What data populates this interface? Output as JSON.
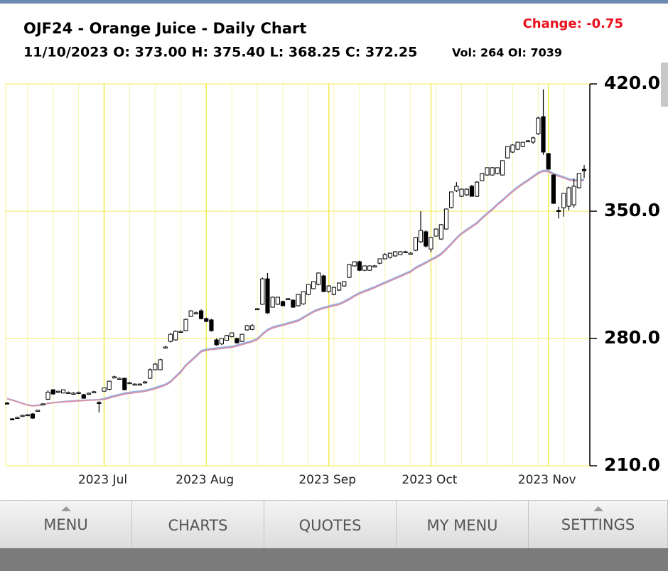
{
  "chart_data": {
    "type": "candlestick",
    "title": "OJF24 - Orange Juice - Daily Chart",
    "subtitle": "11/10/2023 O: 373.00 H: 375.40 L: 368.25 C: 372.25",
    "info": "Vol: 264 OI: 7039",
    "annotation": "Change: -0.75",
    "categories": [
      null,
      null,
      null,
      null,
      null,
      null,
      null,
      null,
      null,
      null,
      null,
      null,
      null,
      null,
      null,
      null,
      null,
      null,
      null,
      "2023 Jul",
      null,
      null,
      null,
      null,
      null,
      null,
      null,
      null,
      null,
      null,
      null,
      null,
      null,
      null,
      null,
      null,
      null,
      null,
      null,
      "2023 Aug",
      null,
      null,
      null,
      null,
      null,
      null,
      null,
      null,
      null,
      null,
      null,
      null,
      null,
      null,
      null,
      null,
      null,
      null,
      null,
      null,
      null,
      null,
      null,
      "2023 Sep",
      null,
      null,
      null,
      null,
      null,
      null,
      null,
      null,
      null,
      null,
      null,
      null,
      null,
      null,
      null,
      null,
      null,
      null,
      null,
      "2023 Oct",
      null,
      null,
      null,
      null,
      null,
      null,
      null,
      null,
      null,
      null,
      null,
      null,
      null,
      null,
      null,
      null,
      null,
      null,
      null,
      null,
      null,
      null,
      "2023 Nov",
      null,
      null,
      null,
      null,
      null,
      null,
      null
    ],
    "open": [
      244.5,
      235.8,
      236.0,
      237.2,
      238.0,
      238.5,
      240.0,
      244.0,
      246.6,
      251.8,
      250.5,
      250.0,
      250.3,
      249.9,
      250.3,
      249.1,
      249.9,
      250.7,
      244.8,
      251.0,
      252.0,
      258.9,
      258.1,
      258.1,
      255.7,
      254.9,
      254.9,
      255.5,
      258.1,
      262.8,
      262.8,
      275.3,
      278.4,
      279.2,
      283.9,
      284.3,
      292.1,
      294.1,
      295.2,
      290.9,
      290.2,
      279.2,
      277.0,
      279.0,
      281.0,
      280.0,
      278.4,
      284.7,
      285.0,
      296.4,
      298.8,
      312.8,
      297.2,
      298.8,
      300.3,
      301.9,
      301.1,
      298.0,
      299.0,
      304.2,
      307.4,
      309.7,
      314.4,
      305.8,
      304.2,
      306.6,
      308.9,
      313.6,
      319.9,
      322.2,
      317.5,
      317.5,
      319.9,
      321.4,
      323.8,
      324.6,
      325.4,
      326.1,
      327.7,
      326.9,
      328.5,
      333.2,
      338.7,
      329.2,
      336.3,
      334.7,
      340.2,
      352.0,
      361.3,
      358.2,
      359.0,
      363.7,
      358.2,
      366.8,
      369.9,
      369.9,
      370.7,
      369.9,
      379.3,
      382.5,
      384.0,
      385.6,
      388.7,
      388.0,
      392.6,
      402.0,
      381.7,
      369.9,
      350.4,
      351.9,
      352.7,
      353.5,
      362.9,
      373.0
    ],
    "high": [
      245.0,
      236.2,
      237.0,
      238.0,
      238.5,
      239.0,
      240.8,
      244.5,
      251.5,
      252.2,
      251.2,
      252.0,
      250.8,
      250.5,
      250.8,
      249.5,
      250.3,
      251.2,
      245.5,
      253.0,
      256.8,
      259.5,
      258.6,
      258.5,
      256.2,
      255.3,
      255.3,
      256.5,
      263.5,
      266.5,
      268.8,
      276.0,
      283.0,
      284.5,
      284.5,
      291.0,
      295.5,
      294.8,
      296.0,
      291.5,
      290.8,
      280.0,
      280.2,
      282.0,
      283.3,
      280.5,
      282.5,
      287.5,
      288.0,
      296.8,
      313.5,
      316.0,
      303.0,
      302.9,
      300.8,
      302.3,
      301.5,
      304.5,
      306.0,
      309.9,
      311.5,
      316.3,
      315.0,
      309.2,
      308.3,
      310.8,
      311.5,
      321.0,
      322.5,
      322.8,
      320.2,
      320.2,
      320.5,
      324.0,
      327.0,
      327.2,
      328.0,
      328.0,
      328.2,
      327.5,
      335.8,
      350.0,
      339.5,
      336.0,
      340.5,
      343.0,
      351.5,
      360.6,
      366.0,
      362.5,
      362.5,
      364.5,
      366.5,
      371.0,
      374.0,
      374.2,
      374.0,
      378.0,
      385.8,
      386.8,
      388.2,
      388.2,
      389.2,
      391.0,
      402.0,
      417.0,
      382.0,
      370.5,
      352.5,
      360.0,
      363.5,
      368.0,
      370.8,
      375.4
    ],
    "low": [
      243.8,
      235.0,
      235.8,
      237.0,
      237.5,
      235.8,
      239.8,
      243.5,
      246.0,
      249.0,
      250.0,
      249.8,
      250.0,
      249.5,
      250.0,
      247.0,
      249.5,
      250.3,
      239.3,
      250.8,
      251.5,
      258.0,
      257.5,
      251.5,
      255.2,
      254.5,
      254.5,
      255.2,
      257.8,
      262.5,
      262.5,
      274.5,
      277.8,
      278.8,
      283.3,
      284.0,
      291.8,
      293.5,
      290.5,
      289.0,
      283.8,
      276.0,
      276.5,
      278.8,
      280.5,
      277.2,
      278.0,
      284.3,
      284.5,
      296.0,
      298.5,
      293.5,
      297.0,
      298.5,
      297.8,
      301.5,
      296.8,
      297.5,
      298.5,
      303.8,
      307.0,
      309.2,
      305.5,
      305.3,
      303.8,
      306.2,
      308.5,
      313.2,
      319.5,
      317.0,
      317.0,
      317.2,
      319.2,
      320.8,
      323.5,
      324.0,
      325.0,
      326.0,
      327.2,
      326.5,
      328.0,
      332.5,
      330.0,
      327.5,
      336.0,
      334.2,
      339.8,
      351.5,
      360.5,
      357.8,
      358.5,
      358.0,
      357.8,
      366.5,
      369.5,
      369.5,
      370.2,
      369.5,
      379.0,
      382.0,
      383.5,
      385.2,
      388.2,
      387.0,
      392.0,
      381.0,
      372.8,
      354.0,
      346.0,
      347.0,
      350.5,
      352.0,
      362.5,
      368.25
    ],
    "close": [
      244.2,
      235.4,
      236.6,
      237.7,
      238.1,
      236.2,
      240.5,
      244.0,
      250.5,
      249.5,
      251.0,
      251.8,
      250.3,
      249.9,
      250.3,
      247.1,
      249.9,
      250.7,
      244.4,
      252.8,
      256.5,
      258.9,
      258.1,
      251.8,
      255.7,
      254.9,
      254.9,
      256.1,
      262.8,
      265.9,
      268.3,
      275.3,
      282.3,
      283.9,
      283.9,
      290.5,
      295.2,
      294.1,
      290.9,
      289.4,
      284.3,
      276.5,
      280.0,
      281.6,
      283.1,
      277.6,
      282.3,
      287.0,
      287.0,
      296.4,
      312.8,
      294.1,
      302.7,
      302.7,
      298.0,
      301.9,
      297.2,
      304.2,
      305.8,
      309.7,
      311.3,
      316.0,
      305.8,
      308.9,
      308.1,
      310.5,
      311.3,
      320.7,
      322.2,
      317.5,
      319.9,
      319.9,
      319.9,
      323.8,
      326.1,
      326.9,
      327.7,
      327.7,
      327.7,
      326.9,
      335.5,
      339.4,
      330.8,
      335.5,
      340.2,
      342.6,
      351.2,
      360.6,
      363.7,
      362.1,
      362.1,
      358.2,
      366.0,
      370.7,
      373.9,
      373.9,
      373.9,
      377.8,
      385.6,
      386.4,
      387.9,
      387.9,
      388.7,
      390.3,
      401.2,
      382.5,
      373.1,
      354.3,
      350.2,
      359.8,
      362.9,
      363.7,
      370.7,
      372.25
    ],
    "series": [
      {
        "color": "#8fb4e6",
        "values": [
          247.0,
          246.2,
          245.3,
          244.4,
          243.5,
          243.1,
          243.3,
          243.8,
          244.4,
          244.8,
          245.0,
          245.3,
          245.5,
          245.7,
          245.9,
          246.0,
          246.2,
          246.3,
          246.4,
          247.0,
          247.8,
          248.6,
          249.3,
          250.0,
          250.4,
          250.8,
          251.1,
          251.5,
          252.2,
          253.0,
          253.9,
          254.9,
          256.5,
          259.3,
          262.0,
          265.5,
          268.0,
          270.6,
          273.3,
          274.1,
          274.5,
          274.8,
          275.1,
          275.4,
          275.7,
          276.4,
          277.2,
          278.0,
          278.8,
          280.0,
          282.7,
          285.0,
          286.3,
          287.1,
          287.8,
          288.6,
          289.4,
          290.2,
          291.8,
          293.5,
          295.1,
          296.3,
          297.1,
          297.9,
          298.6,
          299.2,
          300.5,
          302.0,
          303.7,
          305.2,
          306.3,
          307.4,
          308.5,
          309.8,
          311.0,
          312.2,
          313.4,
          314.6,
          315.9,
          317.1,
          319.2,
          320.6,
          322.0,
          323.6,
          325.0,
          326.8,
          329.5,
          332.4,
          335.5,
          338.0,
          340.0,
          341.9,
          343.8,
          346.5,
          349.0,
          351.3,
          354.0,
          356.3,
          358.8,
          361.3,
          363.5,
          365.5,
          367.3,
          369.3,
          371.3,
          372.5,
          372.3,
          370.8,
          369.8,
          368.9,
          367.8,
          367.3,
          367.3,
          367.5
        ]
      },
      {
        "color": "#d98fa8",
        "values": [
          246.8,
          246.0,
          245.1,
          244.2,
          243.3,
          242.9,
          243.1,
          243.6,
          244.2,
          244.6,
          244.8,
          245.1,
          245.3,
          245.5,
          245.7,
          245.8,
          246.0,
          246.1,
          246.2,
          246.4,
          247.2,
          248.0,
          248.7,
          249.4,
          249.8,
          250.2,
          250.5,
          250.9,
          251.6,
          252.4,
          253.3,
          254.3,
          255.9,
          258.7,
          261.4,
          264.9,
          267.4,
          270.0,
          272.7,
          273.5,
          273.9,
          274.2,
          274.5,
          274.8,
          275.1,
          275.8,
          276.6,
          277.4,
          278.2,
          279.4,
          282.1,
          284.4,
          285.7,
          286.5,
          287.2,
          288.0,
          288.8,
          289.6,
          291.2,
          292.9,
          294.5,
          295.7,
          296.5,
          297.3,
          298.0,
          298.6,
          299.9,
          301.4,
          303.1,
          304.6,
          305.7,
          306.8,
          307.9,
          309.2,
          310.4,
          311.6,
          312.8,
          314.0,
          315.3,
          316.5,
          318.6,
          320.0,
          321.4,
          323.0,
          324.4,
          326.2,
          328.9,
          331.8,
          334.9,
          337.4,
          339.4,
          341.3,
          343.2,
          345.9,
          348.4,
          350.7,
          353.4,
          355.7,
          358.2,
          360.7,
          362.9,
          364.9,
          366.7,
          368.7,
          370.7,
          371.9,
          371.7,
          370.2,
          369.2,
          368.3,
          367.2,
          366.7,
          366.7,
          366.9
        ]
      }
    ],
    "up_color": "#ffffff",
    "down_color": "#000000",
    "ylim": [
      210,
      420
    ],
    "yticks": [
      {
        "value": 420,
        "label": "420.0"
      },
      {
        "value": 350,
        "label": "350.0"
      },
      {
        "value": 280,
        "label": "280.0"
      },
      {
        "value": 210,
        "label": "210.0"
      }
    ],
    "grid": true
  },
  "menu": [
    "MENU",
    "CHARTS",
    "QUOTES",
    "MY MENU",
    "SETTINGS"
  ]
}
